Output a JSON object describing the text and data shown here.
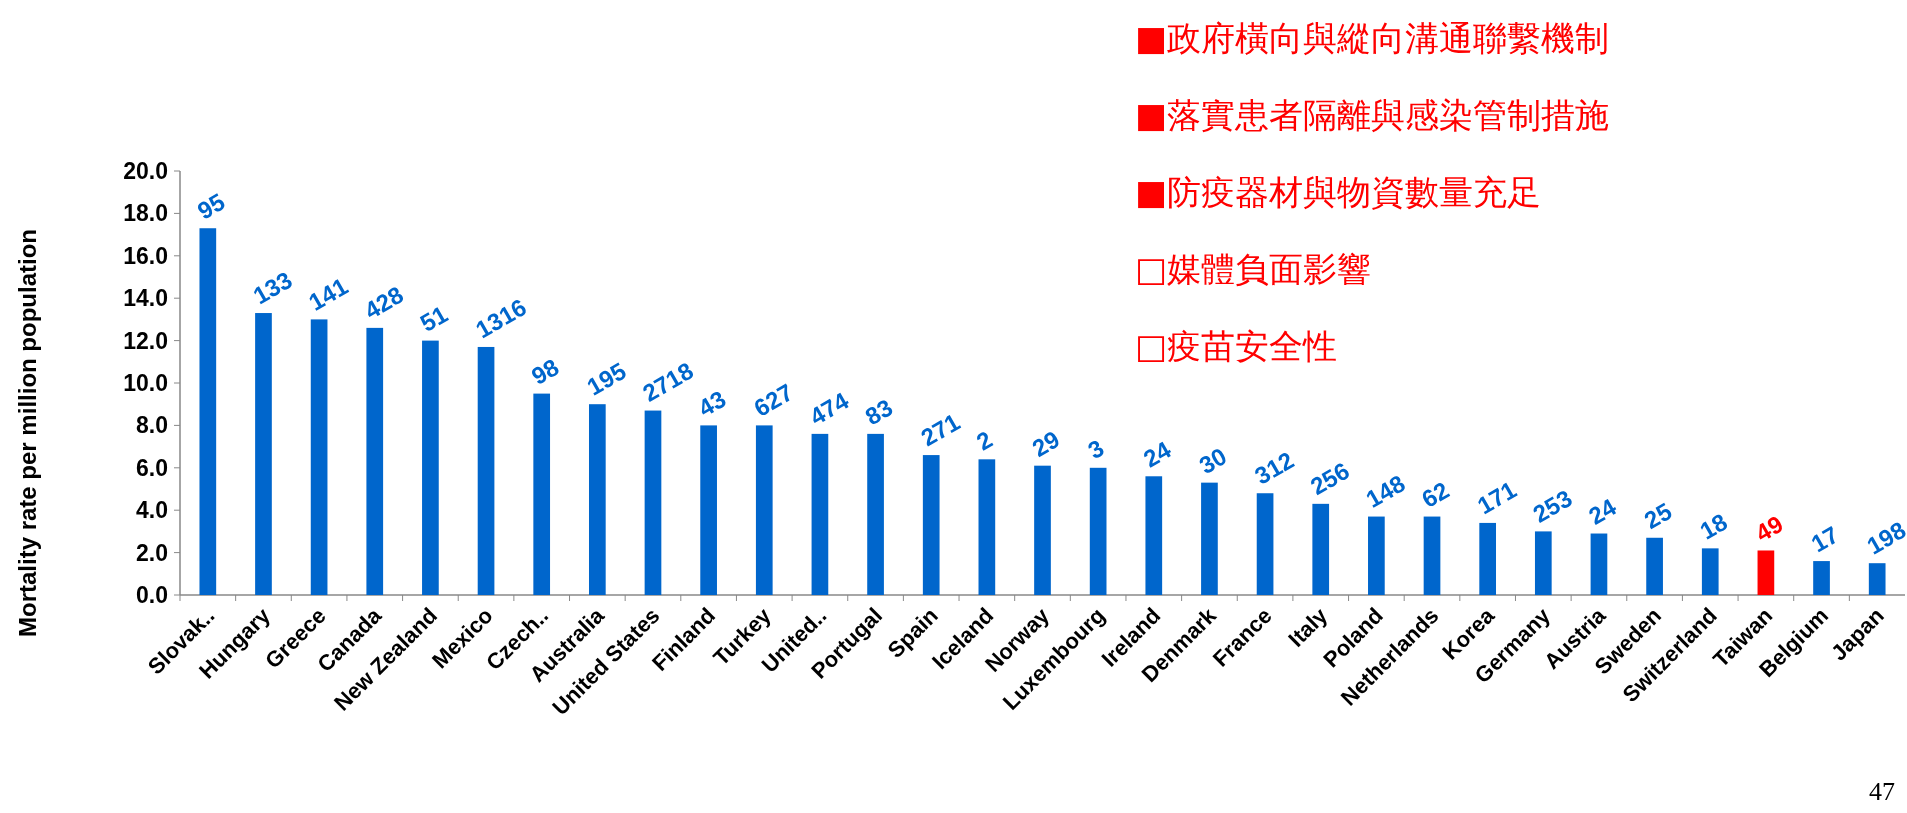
{
  "chart_data": {
    "type": "bar",
    "ylabel": "Mortality rate per million population",
    "categories": [
      "Slovak..",
      "Hungary",
      "Greece",
      "Canada",
      "New Zealand",
      "Mexico",
      "Czech..",
      "Australia",
      "United States",
      "Finland",
      "Turkey",
      "United..",
      "Portugal",
      "Spain",
      "Iceland",
      "Norway",
      "Luxembourg",
      "Ireland",
      "Denmark",
      "France",
      "Italy",
      "Poland",
      "Netherlands",
      "Korea",
      "Germany",
      "Austria",
      "Sweden",
      "Switzerland",
      "Taiwan",
      "Belgium",
      "Japan"
    ],
    "values": [
      17.3,
      13.3,
      13.0,
      12.6,
      12.0,
      11.7,
      9.5,
      9.0,
      8.7,
      8.0,
      8.0,
      7.6,
      7.6,
      6.6,
      6.4,
      6.1,
      6.0,
      5.6,
      5.3,
      4.8,
      4.3,
      3.7,
      3.7,
      3.4,
      3.0,
      2.9,
      2.7,
      2.2,
      2.1,
      1.6,
      1.5
    ],
    "colors": [
      "#0066cc",
      "#0066cc",
      "#0066cc",
      "#0066cc",
      "#0066cc",
      "#0066cc",
      "#0066cc",
      "#0066cc",
      "#0066cc",
      "#0066cc",
      "#0066cc",
      "#0066cc",
      "#0066cc",
      "#0066cc",
      "#0066cc",
      "#0066cc",
      "#0066cc",
      "#0066cc",
      "#0066cc",
      "#0066cc",
      "#0066cc",
      "#0066cc",
      "#0066cc",
      "#0066cc",
      "#0066cc",
      "#0066cc",
      "#0066cc",
      "#0066cc",
      "#ff0000",
      "#0066cc",
      "#0066cc"
    ],
    "ylim": [
      0,
      20
    ],
    "grid": false,
    "yticks": [
      {
        "value": 0,
        "label": "0.0"
      },
      {
        "value": 2,
        "label": "2.0"
      },
      {
        "value": 4,
        "label": "4.0"
      },
      {
        "value": 6,
        "label": "6.0"
      },
      {
        "value": 8,
        "label": "8.0"
      },
      {
        "value": 10,
        "label": "10.0"
      },
      {
        "value": 12,
        "label": "12.0"
      },
      {
        "value": 14,
        "label": "14.0"
      },
      {
        "value": 16,
        "label": "16.0"
      },
      {
        "value": 18,
        "label": "18.0"
      },
      {
        "value": 20,
        "label": "20.0"
      }
    ],
    "annotations": [
      {
        "text": "95",
        "x": "Slovak..",
        "y": 17.3
      },
      {
        "text": "133",
        "x": "Hungary",
        "y": 13.3
      },
      {
        "text": "141",
        "x": "Greece",
        "y": 13.0
      },
      {
        "text": "428",
        "x": "Canada",
        "y": 12.6
      },
      {
        "text": "51",
        "x": "New Zealand",
        "y": 12.0
      },
      {
        "text": "1316",
        "x": "Mexico",
        "y": 11.7
      },
      {
        "text": "98",
        "x": "Czech..",
        "y": 9.5
      },
      {
        "text": "195",
        "x": "Australia",
        "y": 9.0
      },
      {
        "text": "2718",
        "x": "United States",
        "y": 8.7
      },
      {
        "text": "43",
        "x": "Finland",
        "y": 8.0
      },
      {
        "text": "627",
        "x": "Turkey",
        "y": 8.0
      },
      {
        "text": "474",
        "x": "United..",
        "y": 7.6
      },
      {
        "text": "83",
        "x": "Portugal",
        "y": 7.6
      },
      {
        "text": "271",
        "x": "Spain",
        "y": 6.6
      },
      {
        "text": "2",
        "x": "Iceland",
        "y": 6.4
      },
      {
        "text": "29",
        "x": "Norway",
        "y": 6.1
      },
      {
        "text": "3",
        "x": "Luxembourg",
        "y": 6.0
      },
      {
        "text": "24",
        "x": "Ireland",
        "y": 5.6
      },
      {
        "text": "30",
        "x": "Denmark",
        "y": 5.3
      },
      {
        "text": "312",
        "x": "France",
        "y": 4.8
      },
      {
        "text": "256",
        "x": "Italy",
        "y": 4.3
      },
      {
        "text": "148",
        "x": "Poland",
        "y": 3.7
      },
      {
        "text": "62",
        "x": "Netherlands",
        "y": 3.7
      },
      {
        "text": "171",
        "x": "Korea",
        "y": 3.4
      },
      {
        "text": "253",
        "x": "Germany",
        "y": 3.0
      },
      {
        "text": "24",
        "x": "Austria",
        "y": 2.9
      },
      {
        "text": "25",
        "x": "Sweden",
        "y": 2.7
      },
      {
        "text": "18",
        "x": "Switzerland",
        "y": 2.2
      },
      {
        "text": "49",
        "x": "Taiwan",
        "y": 2.1
      },
      {
        "text": "17",
        "x": "Belgium",
        "y": 1.6
      },
      {
        "text": "198",
        "x": "Japan",
        "y": 1.5
      },
      "■政府橫向與縱向溝通聯繫機制",
      "■落實患者隔離與感染管制措施",
      "■防疫器材與物資數量充足",
      "□媒體負面影響",
      "□疫苗安全性",
      "47"
    ]
  }
}
